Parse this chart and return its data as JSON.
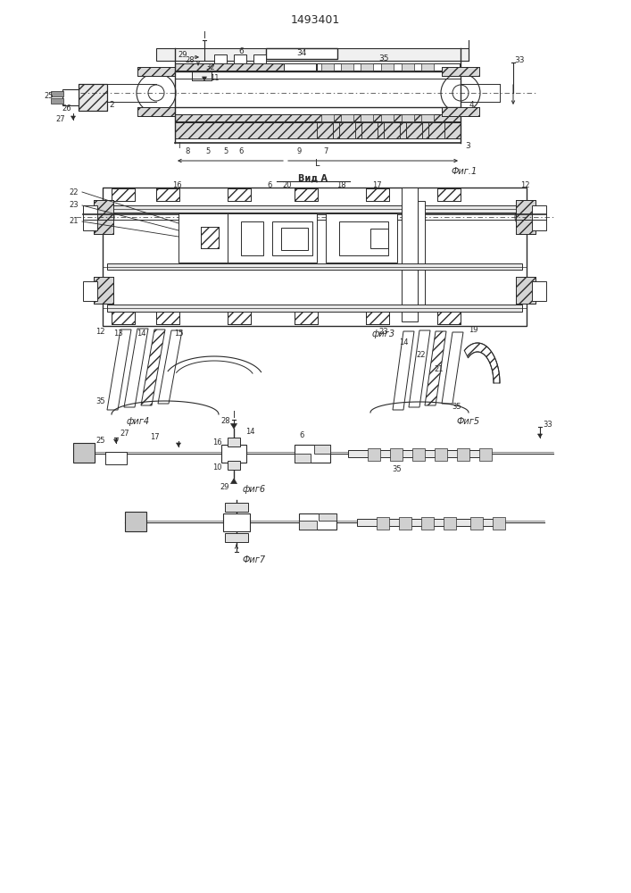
{
  "title": "1493401",
  "background_color": "#ffffff",
  "line_color": "#2a2a2a",
  "fig1_caption": "Фиг.1",
  "fig2_caption": "Вид А",
  "fig3_caption": "фиг3",
  "fig4_caption": "фиг4",
  "fig5_caption": "Фиг5",
  "fig6_caption": "фиг6",
  "fig7_caption": "Фиг7"
}
